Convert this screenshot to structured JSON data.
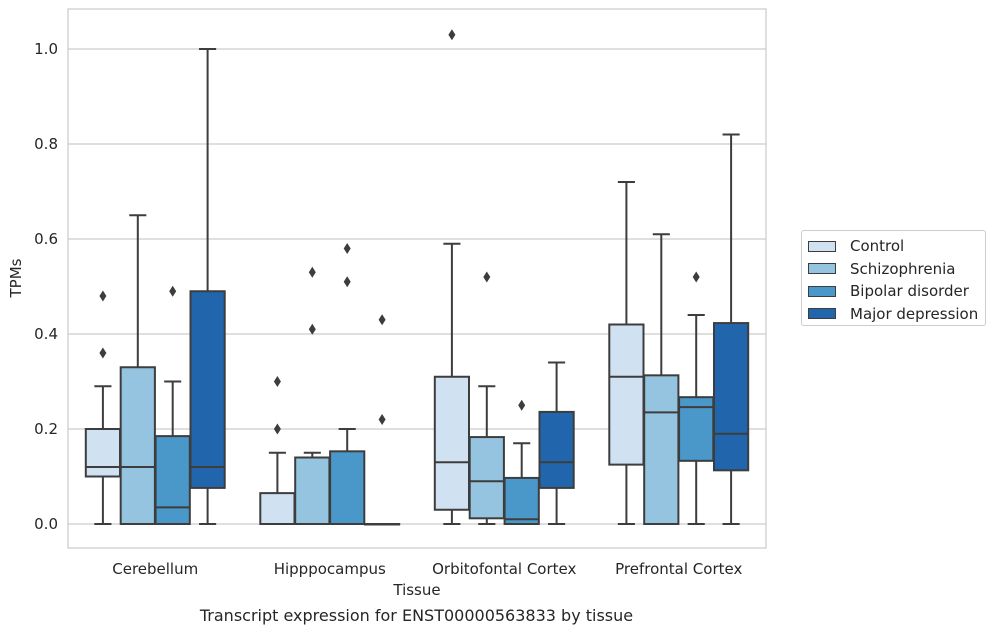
{
  "caption": "Transcript expression for ENST00000563833 by tissue",
  "chart_data": {
    "type": "box",
    "xlabel": "Tissue",
    "ylabel": "TPMs",
    "ylim": [
      -0.05,
      1.08
    ],
    "yticks": [
      "0.0",
      "0.2",
      "0.4",
      "0.6",
      "0.8",
      "1.0"
    ],
    "grid": "horizontal",
    "legend_position": "right",
    "categories": [
      "Cerebellum",
      "Hipppocampus",
      "Orbitofontal Cortex",
      "Prefrontal Cortex"
    ],
    "series": [
      {
        "name": "Control",
        "color": "#d0e1f2",
        "boxes": [
          {
            "whislo": 0.0,
            "q1": 0.1,
            "med": 0.12,
            "q3": 0.2,
            "whishi": 0.29,
            "fliers": [
              0.36,
              0.48
            ]
          },
          {
            "whislo": 0.0,
            "q1": 0.0,
            "med": 0.0,
            "q3": 0.065,
            "whishi": 0.15,
            "fliers": [
              0.2,
              0.3
            ]
          },
          {
            "whislo": 0.0,
            "q1": 0.03,
            "med": 0.13,
            "q3": 0.31,
            "whishi": 0.59,
            "fliers": [
              1.03
            ]
          },
          {
            "whislo": 0.0,
            "q1": 0.125,
            "med": 0.31,
            "q3": 0.42,
            "whishi": 0.72,
            "fliers": []
          }
        ]
      },
      {
        "name": "Schizophrenia",
        "color": "#94c4df",
        "boxes": [
          {
            "whislo": 0.0,
            "q1": 0.0,
            "med": 0.12,
            "q3": 0.33,
            "whishi": 0.65,
            "fliers": []
          },
          {
            "whislo": 0.0,
            "q1": 0.0,
            "med": 0.0,
            "q3": 0.14,
            "whishi": 0.15,
            "fliers": [
              0.41,
              0.53
            ]
          },
          {
            "whislo": 0.0,
            "q1": 0.012,
            "med": 0.09,
            "q3": 0.183,
            "whishi": 0.29,
            "fliers": [
              0.52
            ]
          },
          {
            "whislo": 0.0,
            "q1": 0.0,
            "med": 0.235,
            "q3": 0.313,
            "whishi": 0.61,
            "fliers": []
          }
        ]
      },
      {
        "name": "Bipolar disorder",
        "color": "#4a98c9",
        "boxes": [
          {
            "whislo": 0.0,
            "q1": 0.0,
            "med": 0.035,
            "q3": 0.185,
            "whishi": 0.3,
            "fliers": [
              0.49
            ]
          },
          {
            "whislo": 0.0,
            "q1": 0.0,
            "med": 0.0,
            "q3": 0.153,
            "whishi": 0.2,
            "fliers": [
              0.51,
              0.58
            ]
          },
          {
            "whislo": 0.0,
            "q1": 0.0,
            "med": 0.01,
            "q3": 0.097,
            "whishi": 0.17,
            "fliers": [
              0.25
            ]
          },
          {
            "whislo": 0.0,
            "q1": 0.133,
            "med": 0.246,
            "q3": 0.267,
            "whishi": 0.44,
            "fliers": [
              0.52
            ]
          }
        ]
      },
      {
        "name": "Major depression",
        "color": "#2166ac",
        "boxes": [
          {
            "whislo": 0.0,
            "q1": 0.076,
            "med": 0.12,
            "q3": 0.49,
            "whishi": 1.0,
            "fliers": []
          },
          {
            "whislo": 0.0,
            "q1": 0.0,
            "med": 0.0,
            "q3": 0.0,
            "whishi": 0.0,
            "fliers": [
              0.22,
              0.43
            ]
          },
          {
            "whislo": 0.0,
            "q1": 0.076,
            "med": 0.13,
            "q3": 0.236,
            "whishi": 0.34,
            "fliers": []
          },
          {
            "whislo": 0.0,
            "q1": 0.113,
            "med": 0.19,
            "q3": 0.423,
            "whishi": 0.82,
            "fliers": []
          }
        ]
      }
    ]
  }
}
